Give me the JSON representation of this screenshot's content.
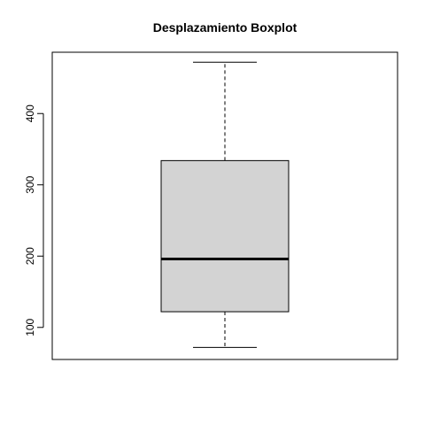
{
  "chart_data": {
    "type": "boxplot",
    "title": "Desplazamiento Boxplot",
    "xlabel": "",
    "ylabel": "",
    "ylim": [
      55,
      486
    ],
    "yticks": [
      100,
      200,
      300,
      400
    ],
    "box": {
      "min": 72,
      "q1": 122,
      "median": 196,
      "q3": 334,
      "max": 472,
      "fill": "#d3d3d3"
    },
    "grid": false
  }
}
